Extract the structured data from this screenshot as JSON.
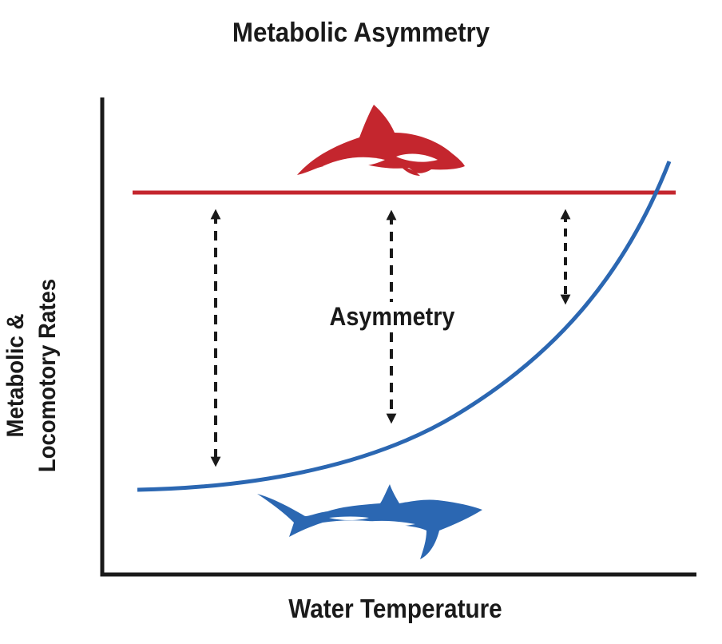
{
  "title": "Metabolic Asymmetry",
  "axes": {
    "xlabel": "Water Temperature",
    "ylabel_line1": "Metabolic &",
    "ylabel_line2": "Locomotory Rates"
  },
  "annotation": "Asymmetry",
  "colors": {
    "endotherm": "#c4262e",
    "ectotherm": "#2b67b2",
    "axis": "#1a1a1a"
  },
  "icons": {
    "endotherm": "dolphin-icon",
    "ectotherm": "shark-icon"
  }
}
